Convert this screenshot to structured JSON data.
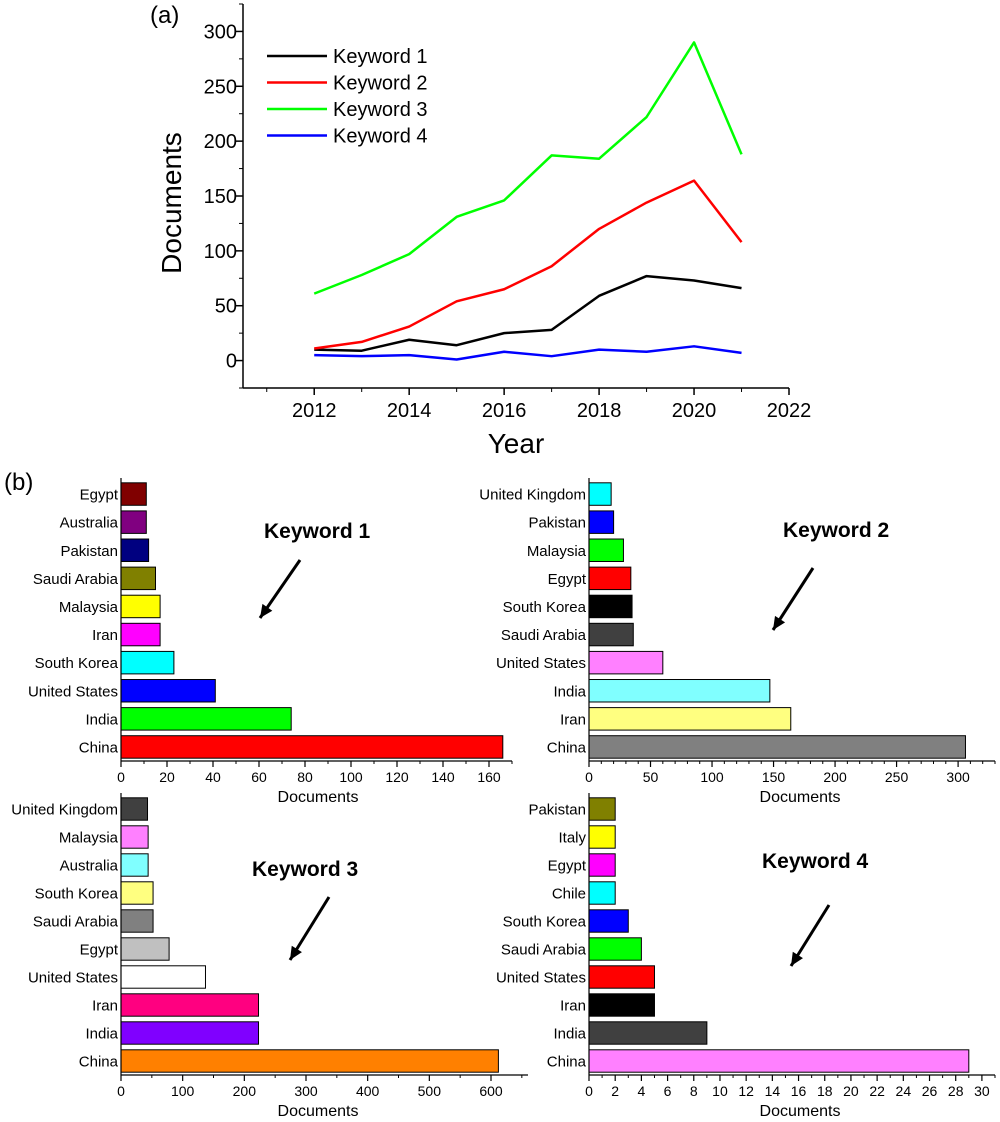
{
  "panel_labels": {
    "a": "(a)",
    "b": "(b)"
  },
  "chart_data": [
    {
      "type": "line",
      "panel": "(a)",
      "xlabel": "Year",
      "ylabel": "Documents",
      "x": [
        2012,
        2013,
        2014,
        2015,
        2016,
        2017,
        2018,
        2019,
        2020,
        2021
      ],
      "xlim": [
        2010.5,
        2022
      ],
      "ylim": [
        -25,
        325
      ],
      "xticks": [
        2012,
        2014,
        2016,
        2018,
        2020,
        2022
      ],
      "yticks": [
        0,
        50,
        100,
        150,
        200,
        250,
        300
      ],
      "legend_position": "top-left",
      "series": [
        {
          "name": "Keyword 1",
          "color": "#000000",
          "values": [
            10,
            9,
            19,
            14,
            25,
            28,
            59,
            77,
            73,
            66
          ]
        },
        {
          "name": "Keyword 2",
          "color": "#ff0000",
          "values": [
            11,
            17,
            31,
            54,
            65,
            86,
            120,
            144,
            164,
            108
          ]
        },
        {
          "name": "Keyword 3",
          "color": "#00ff00",
          "values": [
            61,
            78,
            97,
            131,
            146,
            187,
            184,
            222,
            290,
            188
          ]
        },
        {
          "name": "Keyword 4",
          "color": "#0000ff",
          "values": [
            5,
            4,
            5,
            1,
            8,
            4,
            10,
            8,
            13,
            7
          ]
        }
      ]
    },
    {
      "type": "bar",
      "orientation": "horizontal",
      "title": "Keyword 1",
      "xlabel": "Documents",
      "xlim": [
        0,
        170
      ],
      "xticks": [
        0,
        20,
        40,
        60,
        80,
        100,
        120,
        140,
        160
      ],
      "minor_step": 10,
      "categories": [
        "Egypt",
        "Australia",
        "Pakistan",
        "Saudi Arabia",
        "Malaysia",
        "Iran",
        "South Korea",
        "United States",
        "India",
        "China"
      ],
      "values": [
        11,
        11,
        12,
        15,
        17,
        17,
        23,
        41,
        74,
        166
      ],
      "colors": [
        "#800000",
        "#800080",
        "#000080",
        "#808000",
        "#ffff00",
        "#ff00ff",
        "#00ffff",
        "#0000ff",
        "#00ff00",
        "#ff0000"
      ]
    },
    {
      "type": "bar",
      "orientation": "horizontal",
      "title": "Keyword 2",
      "xlabel": "Documents",
      "xlim": [
        0,
        330
      ],
      "xticks": [
        0,
        50,
        100,
        150,
        200,
        250,
        300
      ],
      "minor_step": 10,
      "categories": [
        "United Kingdom",
        "Pakistan",
        "Malaysia",
        "Egypt",
        "South Korea",
        "Saudi Arabia",
        "United States",
        "India",
        "Iran",
        "China"
      ],
      "values": [
        18,
        20,
        28,
        34,
        35,
        36,
        60,
        147,
        164,
        306
      ],
      "colors": [
        "#00ffff",
        "#0000ff",
        "#00ff00",
        "#ff0000",
        "#000000",
        "#404040",
        "#ff80ff",
        "#80ffff",
        "#ffff80",
        "#808080"
      ]
    },
    {
      "type": "bar",
      "orientation": "horizontal",
      "title": "Keyword 3",
      "xlabel": "Documents",
      "xlim": [
        0,
        660
      ],
      "xticks": [
        0,
        100,
        200,
        300,
        400,
        500,
        600
      ],
      "minor_step": 50,
      "categories": [
        "United Kingdom",
        "Malaysia",
        "Australia",
        "South Korea",
        "Saudi Arabia",
        "Egypt",
        "United States",
        "Iran",
        "India",
        "China"
      ],
      "values": [
        43,
        44,
        44,
        52,
        52,
        78,
        137,
        223,
        223,
        612
      ],
      "colors": [
        "#404040",
        "#ff80ff",
        "#80ffff",
        "#ffff80",
        "#808080",
        "#c0c0c0",
        "#ffffff",
        "#ff0080",
        "#8000ff",
        "#ff8000"
      ]
    },
    {
      "type": "bar",
      "orientation": "horizontal",
      "title": "Keyword 4",
      "xlabel": "Documents",
      "xlim": [
        0,
        31
      ],
      "xticks": [
        0,
        2,
        4,
        6,
        8,
        10,
        12,
        14,
        16,
        18,
        20,
        22,
        24,
        26,
        28,
        30
      ],
      "minor_step": 1,
      "categories": [
        "Pakistan",
        "Italy",
        "Egypt",
        "Chile",
        "South Korea",
        "Saudi Arabia",
        "United States",
        "Iran",
        "India",
        "China"
      ],
      "values": [
        2,
        2,
        2,
        2,
        3,
        4,
        5,
        5,
        9,
        29
      ],
      "colors": [
        "#808000",
        "#ffff00",
        "#ff00ff",
        "#00ffff",
        "#0000ff",
        "#00ff00",
        "#ff0000",
        "#000000",
        "#404040",
        "#ff80ff"
      ]
    }
  ]
}
